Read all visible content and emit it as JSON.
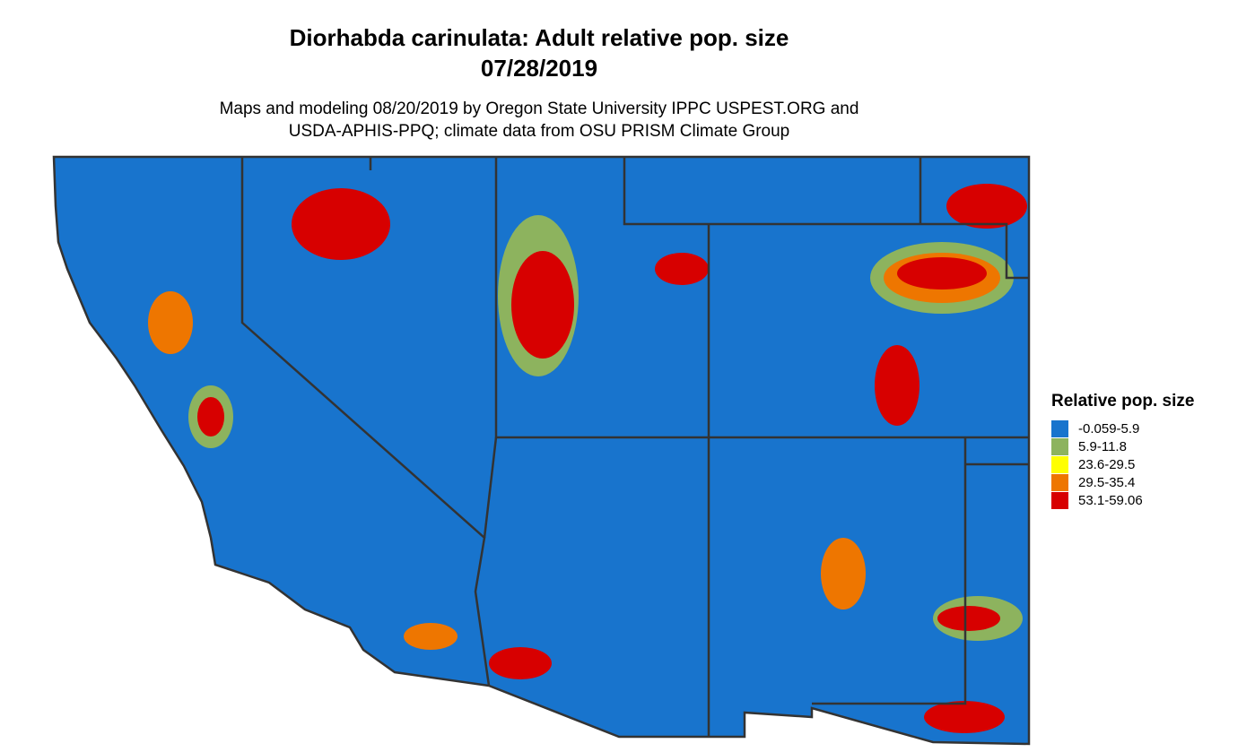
{
  "title": [
    "Diorhabda carinulata: Adult relative pop. size",
    "07/28/2019"
  ],
  "subtitle": [
    "Maps and modeling 08/20/2019 by Oregon State University IPPC USPEST.ORG and",
    "USDA-APHIS-PPQ; climate data from OSU PRISM Climate Group"
  ],
  "legend": {
    "title": "Relative pop. size",
    "items": [
      {
        "label": "-0.059-5.9",
        "color": "#1874cd"
      },
      {
        "label": "5.9-11.8",
        "color": "#8db35e"
      },
      {
        "label": "23.6-29.5",
        "color": "#ffff00"
      },
      {
        "label": "29.5-35.4",
        "color": "#ee7600"
      },
      {
        "label": "53.1-59.06",
        "color": "#d70000"
      }
    ]
  }
}
